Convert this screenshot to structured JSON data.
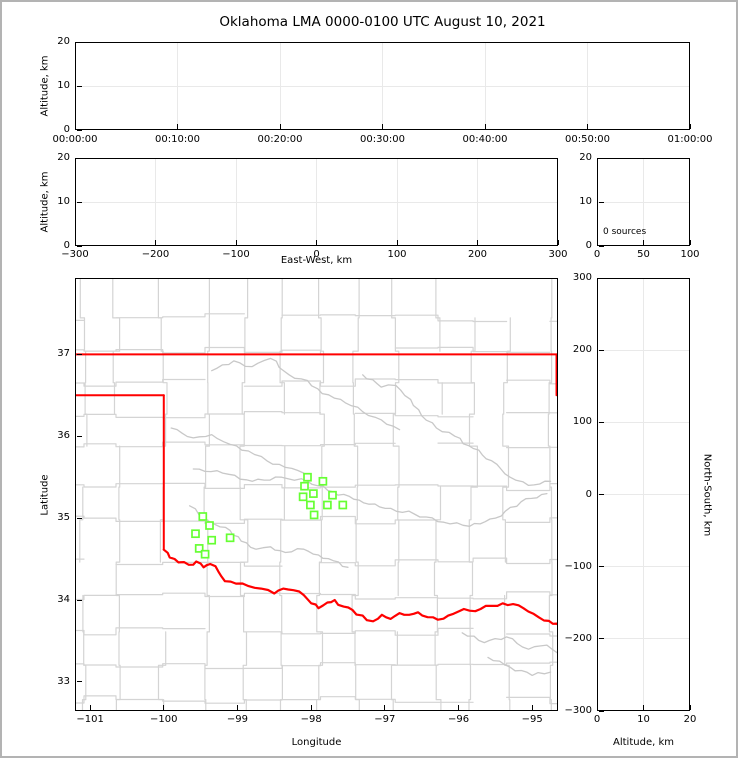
{
  "title": "Oklahoma LMA 0000-0100 UTC August 10, 2021",
  "colors": {
    "state_border": "#ff0000",
    "county_line": "#d4d4d4",
    "river_line": "#c8c8c8",
    "station_marker": "#66ff33",
    "gridline": "#e9e9e9",
    "axis": "#000000",
    "frame": "#b3b3b3"
  },
  "chart_data": [
    {
      "id": "time_height",
      "type": "scatter",
      "description": "altitude vs time panel, no sources plotted",
      "xlabel": "",
      "ylabel": "Altitude, km",
      "xlim": [
        0,
        6
      ],
      "ylim": [
        0,
        20
      ],
      "x_ticks": {
        "values": [
          0,
          1,
          2,
          3,
          4,
          5,
          6
        ],
        "labels": [
          "00:00:00",
          "00:10:00",
          "00:20:00",
          "00:30:00",
          "00:40:00",
          "00:50:00",
          "01:00:00"
        ]
      },
      "y_ticks": {
        "values": [
          0,
          10,
          20
        ],
        "labels": [
          "0",
          "10",
          "20"
        ]
      },
      "x_grid": [
        1,
        2,
        3,
        4,
        5
      ],
      "y_grid": [
        10
      ],
      "points": []
    },
    {
      "id": "ew_altitude",
      "type": "scatter",
      "description": "altitude vs east-west distance panel, no sources plotted",
      "xlabel": "East-West, km",
      "ylabel": "Altitude, km",
      "xlim": [
        -300,
        300
      ],
      "ylim": [
        0,
        20
      ],
      "x_ticks": {
        "values": [
          -300,
          -200,
          -100,
          0,
          100,
          200,
          300
        ],
        "labels": [
          "−300",
          "−200",
          "−100",
          "0",
          "100",
          "200",
          "300"
        ]
      },
      "y_ticks": {
        "values": [
          0,
          10,
          20
        ],
        "labels": [
          "0",
          "10",
          "20"
        ]
      },
      "x_grid": [
        -200,
        -100,
        0,
        100,
        200
      ],
      "y_grid": [
        10
      ],
      "points": []
    },
    {
      "id": "source_histogram",
      "type": "bar",
      "description": "altitude histogram of source counts",
      "annotation": "0 sources",
      "xlabel": "",
      "ylabel": "",
      "xlim": [
        0,
        100
      ],
      "ylim": [
        0,
        20
      ],
      "x_ticks": {
        "values": [
          0,
          50,
          100
        ],
        "labels": [
          "0",
          "50",
          "100"
        ]
      },
      "y_ticks": {
        "values": [
          0,
          10,
          20
        ],
        "labels": [
          "0",
          "10",
          "20"
        ]
      },
      "x_grid": [
        50
      ],
      "y_grid": [
        10
      ],
      "values": []
    },
    {
      "id": "plan_view",
      "type": "scatter",
      "description": "map of Oklahoma with LMA station locations, county lines gray, state borders red",
      "xlabel": "Longitude",
      "ylabel": "Latitude",
      "xlim": [
        -101.205,
        -94.65
      ],
      "ylim": [
        32.645,
        37.932
      ],
      "x_ticks": {
        "values": [
          -101,
          -100,
          -99,
          -98,
          -97,
          -96,
          -95
        ],
        "labels": [
          "−101",
          "−100",
          "−99",
          "−98",
          "−97",
          "−96",
          "−95"
        ]
      },
      "y_ticks": {
        "values": [
          33,
          34,
          35,
          36,
          37
        ],
        "labels": [
          "33",
          "34",
          "35",
          "36",
          "37"
        ]
      },
      "x_grid": [],
      "y_grid": [],
      "stations": [
        {
          "lon": -99.47,
          "lat": 35.02
        },
        {
          "lon": -99.38,
          "lat": 34.91
        },
        {
          "lon": -99.57,
          "lat": 34.81
        },
        {
          "lon": -99.35,
          "lat": 34.73
        },
        {
          "lon": -99.1,
          "lat": 34.76
        },
        {
          "lon": -99.52,
          "lat": 34.63
        },
        {
          "lon": -99.44,
          "lat": 34.56
        },
        {
          "lon": -98.05,
          "lat": 35.5
        },
        {
          "lon": -97.84,
          "lat": 35.45
        },
        {
          "lon": -98.09,
          "lat": 35.39
        },
        {
          "lon": -97.97,
          "lat": 35.3
        },
        {
          "lon": -97.71,
          "lat": 35.28
        },
        {
          "lon": -98.11,
          "lat": 35.26
        },
        {
          "lon": -98.01,
          "lat": 35.16
        },
        {
          "lon": -97.78,
          "lat": 35.16
        },
        {
          "lon": -97.57,
          "lat": 35.16
        },
        {
          "lon": -97.96,
          "lat": 35.04
        }
      ],
      "state_borders": {
        "kansas_south_lat": 37.0,
        "panhandle_north": {
          "lat": 36.5,
          "lon_from": -101.205,
          "lon_to": -100.0
        },
        "meridian_100w": {
          "lon": -100.0,
          "lat_from": 36.5,
          "lat_to": 34.615
        },
        "missouri_west": {
          "lon": -94.67,
          "lat_from": 37.0,
          "lat_to": 36.5
        },
        "red_river": [
          [
            -100.0,
            34.615
          ],
          [
            -99.92,
            34.52
          ],
          [
            -99.8,
            34.46
          ],
          [
            -99.66,
            34.43
          ],
          [
            -99.56,
            34.47
          ],
          [
            -99.46,
            34.4
          ],
          [
            -99.37,
            34.44
          ],
          [
            -99.26,
            34.35
          ],
          [
            -99.17,
            34.23
          ],
          [
            -99.02,
            34.2
          ],
          [
            -98.85,
            34.17
          ],
          [
            -98.68,
            34.14
          ],
          [
            -98.5,
            34.08
          ],
          [
            -98.38,
            34.14
          ],
          [
            -98.24,
            34.12
          ],
          [
            -98.1,
            34.06
          ],
          [
            -98.0,
            33.96
          ],
          [
            -97.9,
            33.9
          ],
          [
            -97.78,
            33.97
          ],
          [
            -97.68,
            34.0
          ],
          [
            -97.56,
            33.92
          ],
          [
            -97.44,
            33.88
          ],
          [
            -97.3,
            33.81
          ],
          [
            -97.16,
            33.74
          ],
          [
            -97.04,
            33.82
          ],
          [
            -96.92,
            33.77
          ],
          [
            -96.8,
            33.84
          ],
          [
            -96.67,
            33.82
          ],
          [
            -96.55,
            33.85
          ],
          [
            -96.42,
            33.79
          ],
          [
            -96.28,
            33.76
          ],
          [
            -96.14,
            33.81
          ],
          [
            -96.0,
            33.86
          ],
          [
            -95.85,
            33.87
          ],
          [
            -95.7,
            33.89
          ],
          [
            -95.55,
            33.93
          ],
          [
            -95.4,
            33.96
          ],
          [
            -95.26,
            33.95
          ],
          [
            -95.12,
            33.9
          ],
          [
            -94.98,
            33.83
          ],
          [
            -94.84,
            33.75
          ],
          [
            -94.72,
            33.71
          ],
          [
            -94.63,
            33.68
          ]
        ]
      },
      "rivers": [
        {
          "name": "cimarron",
          "points": [
            [
              -99.35,
              36.8
            ],
            [
              -99.05,
              36.92
            ],
            [
              -98.8,
              36.85
            ],
            [
              -98.55,
              36.95
            ],
            [
              -98.3,
              36.75
            ],
            [
              -98.05,
              36.68
            ],
            [
              -97.85,
              36.52
            ],
            [
              -97.6,
              36.45
            ],
            [
              -97.3,
              36.3
            ],
            [
              -97.05,
              36.2
            ],
            [
              -96.8,
              36.08
            ]
          ]
        },
        {
          "name": "arkansas",
          "points": [
            [
              -97.3,
              36.75
            ],
            [
              -97.05,
              36.6
            ],
            [
              -96.85,
              36.62
            ],
            [
              -96.65,
              36.45
            ],
            [
              -96.5,
              36.25
            ],
            [
              -96.3,
              36.1
            ],
            [
              -96.05,
              36.0
            ],
            [
              -95.8,
              35.85
            ],
            [
              -95.55,
              35.7
            ],
            [
              -95.3,
              35.5
            ],
            [
              -95.05,
              35.4
            ],
            [
              -94.75,
              35.45
            ]
          ]
        },
        {
          "name": "canadian",
          "points": [
            [
              -99.6,
              35.6
            ],
            [
              -99.2,
              35.55
            ],
            [
              -98.8,
              35.45
            ],
            [
              -98.4,
              35.5
            ],
            [
              -98.05,
              35.45
            ],
            [
              -97.7,
              35.32
            ],
            [
              -97.35,
              35.22
            ],
            [
              -97.0,
              35.12
            ],
            [
              -96.6,
              35.05
            ],
            [
              -96.2,
              34.95
            ],
            [
              -95.85,
              34.9
            ],
            [
              -95.5,
              35.0
            ],
            [
              -95.15,
              35.2
            ],
            [
              -94.8,
              35.3
            ]
          ]
        },
        {
          "name": "north-canadian",
          "points": [
            [
              -99.9,
              36.1
            ],
            [
              -99.6,
              35.98
            ],
            [
              -99.35,
              36.02
            ],
            [
              -99.1,
              35.9
            ],
            [
              -98.85,
              35.82
            ],
            [
              -98.6,
              35.7
            ],
            [
              -98.35,
              35.62
            ],
            [
              -98.1,
              35.55
            ]
          ]
        },
        {
          "name": "washita",
          "points": [
            [
              -99.65,
              35.15
            ],
            [
              -99.45,
              35.0
            ],
            [
              -99.3,
              34.92
            ],
            [
              -99.1,
              34.85
            ],
            [
              -98.95,
              34.72
            ],
            [
              -98.75,
              34.62
            ],
            [
              -98.55,
              34.65
            ],
            [
              -98.35,
              34.58
            ],
            [
              -98.1,
              34.62
            ],
            [
              -97.9,
              34.55
            ],
            [
              -97.7,
              34.48
            ],
            [
              -97.5,
              34.4
            ]
          ]
        },
        {
          "name": "se-river-1",
          "points": [
            [
              -95.95,
              33.6
            ],
            [
              -95.65,
              33.48
            ],
            [
              -95.35,
              33.55
            ],
            [
              -95.05,
              33.4
            ],
            [
              -94.8,
              33.45
            ],
            [
              -94.65,
              33.35
            ]
          ]
        },
        {
          "name": "se-river-2",
          "points": [
            [
              -95.6,
              33.3
            ],
            [
              -95.3,
              33.18
            ],
            [
              -95.0,
              33.08
            ],
            [
              -94.75,
              33.12
            ]
          ]
        }
      ]
    },
    {
      "id": "ns_altitude",
      "type": "scatter",
      "description": "north-south distance vs altitude panel, no sources plotted",
      "xlabel": "Altitude, km",
      "ylabel": "North-South, km",
      "xlim": [
        0,
        20
      ],
      "ylim": [
        -300,
        300
      ],
      "x_ticks": {
        "values": [
          0,
          10,
          20
        ],
        "labels": [
          "0",
          "10",
          "20"
        ]
      },
      "y_ticks": {
        "values": [
          300,
          200,
          100,
          0,
          -100,
          -200,
          -300
        ],
        "labels": [
          "300",
          "200",
          "100",
          "0",
          "−100",
          "−200",
          "−300"
        ]
      },
      "x_grid": [
        10
      ],
      "y_grid": [
        200,
        100,
        0,
        -100,
        -200
      ],
      "points": []
    }
  ]
}
